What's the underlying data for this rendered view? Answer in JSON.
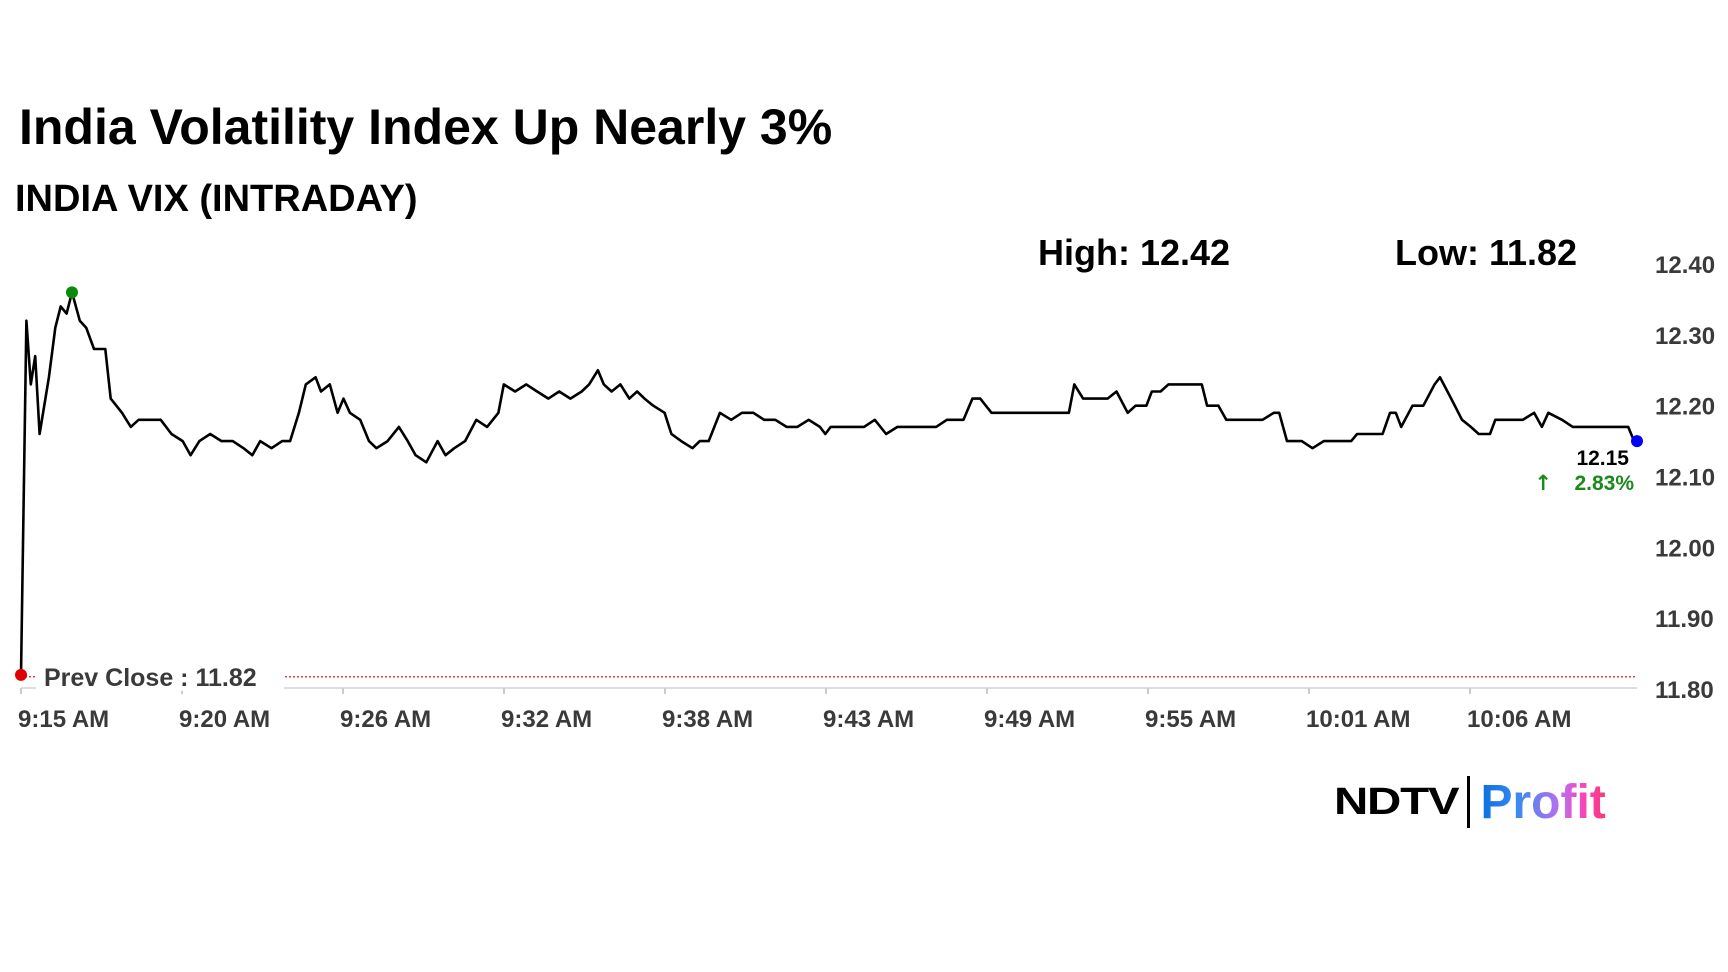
{
  "header": {
    "title": "India Volatility Index Up Nearly 3%",
    "subtitle": "INDIA VIX (INTRADAY)",
    "high_label": "High: 12.42",
    "low_label": "Low: 11.82"
  },
  "logo": {
    "brand": "NDTV",
    "product": "Profit"
  },
  "colors": {
    "line": "#000000",
    "prev_close": "#e00000",
    "high_marker": "#0a8a0a",
    "last_marker": "#0000ff",
    "change_up": "#1a8a1a",
    "axis_text": "#3a3a3a"
  },
  "chart_data": {
    "type": "line",
    "title": "INDIA VIX (INTRADAY)",
    "ylim": [
      11.8,
      12.4
    ],
    "y_ticks": [
      "12.40",
      "12.30",
      "12.20",
      "12.10",
      "12.00",
      "11.90",
      "11.80"
    ],
    "x_ticks": [
      "9:15 AM",
      "9:20 AM",
      "9:26 AM",
      "9:32 AM",
      "9:38 AM",
      "9:43 AM",
      "9:49 AM",
      "9:55 AM",
      "10:01 AM",
      "10:06 AM"
    ],
    "prev_close": {
      "label": "Prev Close : 11.82",
      "value": 11.82
    },
    "last": {
      "value_label": "12.15",
      "change_label": "2.83%",
      "direction": "up"
    },
    "grid": false,
    "series": [
      {
        "points": [
          [
            "9:15:00",
            11.82
          ],
          [
            "9:15:11",
            12.32
          ],
          [
            "9:15:20",
            12.23
          ],
          [
            "9:15:29",
            12.27
          ],
          [
            "9:15:38",
            12.16
          ],
          [
            "9:15:57",
            12.24
          ],
          [
            "9:16:10",
            12.31
          ],
          [
            "9:16:21",
            12.34
          ],
          [
            "9:16:33",
            12.33
          ],
          [
            "9:16:44",
            12.36
          ],
          [
            "9:17:00",
            12.32
          ],
          [
            "9:17:13",
            12.31
          ],
          [
            "9:17:29",
            12.28
          ],
          [
            "9:17:52",
            12.28
          ],
          [
            "9:18:03",
            12.21
          ],
          [
            "9:18:26",
            12.19
          ],
          [
            "9:18:44",
            12.17
          ],
          [
            "9:19:00",
            12.18
          ],
          [
            "9:19:22",
            12.18
          ],
          [
            "9:19:45",
            12.18
          ],
          [
            "9:20:07",
            12.16
          ],
          [
            "9:20:30",
            12.15
          ],
          [
            "9:20:46",
            12.13
          ],
          [
            "9:21:04",
            12.15
          ],
          [
            "9:21:26",
            12.16
          ],
          [
            "9:21:49",
            12.15
          ],
          [
            "9:22:12",
            12.15
          ],
          [
            "9:22:34",
            12.14
          ],
          [
            "9:22:52",
            12.13
          ],
          [
            "9:23:08",
            12.15
          ],
          [
            "9:23:31",
            12.14
          ],
          [
            "9:23:53",
            12.15
          ],
          [
            "9:24:09",
            12.15
          ],
          [
            "9:24:27",
            12.19
          ],
          [
            "9:24:41",
            12.23
          ],
          [
            "9:25:01",
            12.24
          ],
          [
            "9:25:12",
            12.22
          ],
          [
            "9:25:30",
            12.23
          ],
          [
            "9:25:46",
            12.19
          ],
          [
            "9:25:58",
            12.21
          ],
          [
            "9:26:11",
            12.19
          ],
          [
            "9:26:32",
            12.18
          ],
          [
            "9:26:50",
            12.15
          ],
          [
            "9:27:05",
            12.14
          ],
          [
            "9:27:28",
            12.15
          ],
          [
            "9:27:51",
            12.17
          ],
          [
            "9:28:09",
            12.15
          ],
          [
            "9:28:25",
            12.13
          ],
          [
            "9:28:47",
            12.12
          ],
          [
            "9:29:10",
            12.15
          ],
          [
            "9:29:26",
            12.13
          ],
          [
            "9:29:44",
            12.14
          ],
          [
            "9:30:06",
            12.15
          ],
          [
            "9:30:29",
            12.18
          ],
          [
            "9:30:51",
            12.17
          ],
          [
            "9:31:14",
            12.19
          ],
          [
            "9:31:25",
            12.23
          ],
          [
            "9:31:48",
            12.22
          ],
          [
            "9:32:11",
            12.23
          ],
          [
            "9:32:33",
            12.22
          ],
          [
            "9:32:56",
            12.21
          ],
          [
            "9:33:18",
            12.22
          ],
          [
            "9:33:41",
            12.21
          ],
          [
            "9:34:04",
            12.22
          ],
          [
            "9:34:19",
            12.23
          ],
          [
            "9:34:37",
            12.25
          ],
          [
            "9:34:49",
            12.23
          ],
          [
            "9:35:05",
            12.22
          ],
          [
            "9:35:23",
            12.23
          ],
          [
            "9:35:41",
            12.21
          ],
          [
            "9:35:57",
            12.22
          ],
          [
            "9:36:12",
            12.21
          ],
          [
            "9:36:30",
            12.2
          ],
          [
            "9:36:53",
            12.19
          ],
          [
            "9:37:07",
            12.16
          ],
          [
            "9:37:27",
            12.15
          ],
          [
            "9:37:50",
            12.14
          ],
          [
            "9:38:05",
            12.15
          ],
          [
            "9:38:23",
            12.15
          ],
          [
            "9:38:46",
            12.19
          ],
          [
            "9:39:09",
            12.18
          ],
          [
            "9:39:31",
            12.19
          ],
          [
            "9:39:54",
            12.19
          ],
          [
            "9:40:16",
            12.18
          ],
          [
            "9:40:39",
            12.18
          ],
          [
            "9:41:02",
            12.17
          ],
          [
            "9:41:24",
            12.17
          ],
          [
            "9:41:47",
            12.18
          ],
          [
            "9:42:10",
            12.17
          ],
          [
            "9:42:21",
            12.16
          ],
          [
            "9:42:32",
            12.17
          ],
          [
            "9:43:17",
            12.17
          ],
          [
            "9:43:40",
            12.17
          ],
          [
            "9:44:02",
            12.18
          ],
          [
            "9:44:25",
            12.16
          ],
          [
            "9:44:48",
            12.17
          ],
          [
            "9:46:07",
            12.17
          ],
          [
            "9:46:29",
            12.18
          ],
          [
            "9:47:03",
            12.18
          ],
          [
            "9:47:21",
            12.21
          ],
          [
            "9:47:37",
            12.21
          ],
          [
            "9:48:00",
            12.19
          ],
          [
            "9:48:22",
            12.19
          ],
          [
            "9:48:45",
            12.19
          ],
          [
            "9:49:08",
            12.19
          ],
          [
            "9:50:38",
            12.19
          ],
          [
            "9:50:49",
            12.23
          ],
          [
            "9:51:07",
            12.21
          ],
          [
            "9:51:57",
            12.21
          ],
          [
            "9:52:15",
            12.22
          ],
          [
            "9:52:38",
            12.19
          ],
          [
            "9:52:54",
            12.2
          ],
          [
            "9:53:16",
            12.2
          ],
          [
            "9:53:27",
            12.22
          ],
          [
            "9:53:45",
            12.22
          ],
          [
            "9:54:01",
            12.23
          ],
          [
            "9:55:09",
            12.23
          ],
          [
            "9:55:20",
            12.2
          ],
          [
            "9:55:43",
            12.2
          ],
          [
            "9:55:59",
            12.18
          ],
          [
            "9:56:40",
            12.18
          ],
          [
            "9:57:13",
            12.18
          ],
          [
            "9:57:36",
            12.19
          ],
          [
            "9:57:47",
            12.19
          ],
          [
            "9:58:03",
            12.15
          ],
          [
            "9:58:33",
            12.15
          ],
          [
            "9:58:55",
            12.14
          ],
          [
            "9:59:18",
            12.15
          ],
          [
            "10:00:14",
            12.15
          ],
          [
            "10:00:26",
            12.16
          ],
          [
            "10:01:18",
            12.16
          ],
          [
            "10:01:33",
            12.19
          ],
          [
            "10:01:45",
            12.19
          ],
          [
            "10:01:56",
            12.17
          ],
          [
            "10:02:19",
            12.2
          ],
          [
            "10:02:41",
            12.2
          ],
          [
            "10:03:04",
            12.23
          ],
          [
            "10:03:15",
            12.24
          ],
          [
            "10:03:38",
            12.21
          ],
          [
            "10:04:00",
            12.18
          ],
          [
            "10:04:18",
            12.17
          ],
          [
            "10:04:34",
            12.16
          ],
          [
            "10:04:57",
            12.16
          ],
          [
            "10:05:08",
            12.18
          ],
          [
            "10:06:04",
            12.18
          ],
          [
            "10:06:27",
            12.19
          ],
          [
            "10:06:43",
            12.17
          ],
          [
            "10:06:56",
            12.19
          ],
          [
            "10:07:24",
            12.18
          ],
          [
            "10:07:46",
            12.17
          ],
          [
            "10:09:39",
            12.17
          ],
          [
            "10:09:51",
            12.15
          ],
          [
            "10:09:57",
            12.15
          ]
        ]
      }
    ]
  }
}
